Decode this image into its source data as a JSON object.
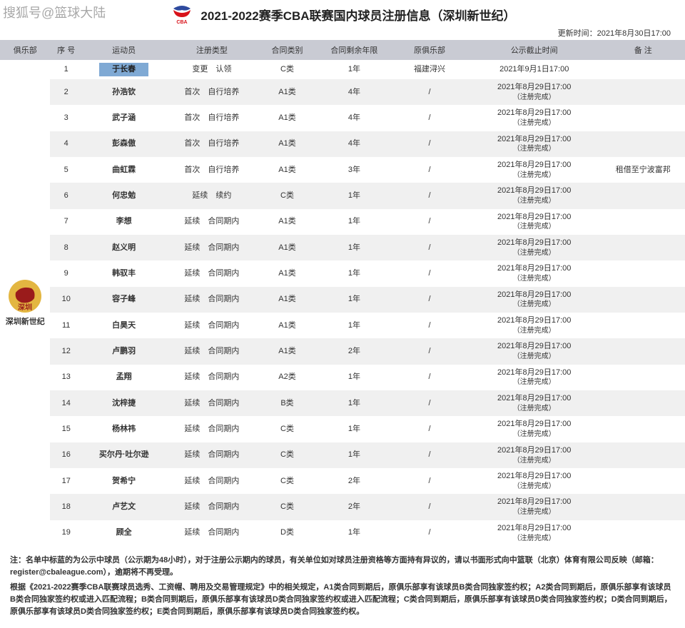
{
  "watermark": "搜狐号@篮球大陆",
  "header": {
    "title": "2021-2022赛季CBA联赛国内球员注册信息（深圳新世纪）",
    "logo_colors": {
      "top": "#2e4a9e",
      "bottom": "#d8121a",
      "text": "#d8121a"
    }
  },
  "update_label": "更新时间：",
  "update_value": "2021年8月30日17:00",
  "columns": [
    "俱乐部",
    "序 号",
    "运动员",
    "注册类型",
    "合同类别",
    "合同剩余年限",
    "原俱乐部",
    "公示截止时间",
    "备 注"
  ],
  "col_widths": [
    "60px",
    "38px",
    "100px",
    "110px",
    "70px",
    "90px",
    "90px",
    "160px",
    "100px"
  ],
  "club": {
    "name": "深圳新世纪",
    "logo_bg": "#e3b641",
    "logo_fg": "#9a1b1b"
  },
  "header_bg": "#c9cbd3",
  "row_even_bg": "#f0f0f0",
  "highlight_bg": "#7fa9d4",
  "rows": [
    {
      "no": "1",
      "name": "于长春",
      "hl": true,
      "reg": "变更　认领",
      "ctype": "C类",
      "years": "1年",
      "origin": "福建浔兴",
      "pub": "2021年9月1日17:00",
      "pub2": "",
      "note": ""
    },
    {
      "no": "2",
      "name": "孙浩钦",
      "reg": "首次　自行培养",
      "ctype": "A1类",
      "years": "4年",
      "origin": "/",
      "pub": "2021年8月29日17:00",
      "pub2": "（注册完成）",
      "note": ""
    },
    {
      "no": "3",
      "name": "武子涵",
      "reg": "首次　自行培养",
      "ctype": "A1类",
      "years": "4年",
      "origin": "/",
      "pub": "2021年8月29日17:00",
      "pub2": "（注册完成）",
      "note": ""
    },
    {
      "no": "4",
      "name": "彭森傲",
      "reg": "首次　自行培养",
      "ctype": "A1类",
      "years": "4年",
      "origin": "/",
      "pub": "2021年8月29日17:00",
      "pub2": "（注册完成）",
      "note": ""
    },
    {
      "no": "5",
      "name": "曲虹霖",
      "reg": "首次　自行培养",
      "ctype": "A1类",
      "years": "3年",
      "origin": "/",
      "pub": "2021年8月29日17:00",
      "pub2": "（注册完成）",
      "note": "租借至宁波富邦"
    },
    {
      "no": "6",
      "name": "何忠勉",
      "reg": "延续　续约",
      "ctype": "C类",
      "years": "1年",
      "origin": "/",
      "pub": "2021年8月29日17:00",
      "pub2": "（注册完成）",
      "note": ""
    },
    {
      "no": "7",
      "name": "李想",
      "reg": "延续　合同期内",
      "ctype": "A1类",
      "years": "1年",
      "origin": "/",
      "pub": "2021年8月29日17:00",
      "pub2": "（注册完成）",
      "note": ""
    },
    {
      "no": "8",
      "name": "赵义明",
      "reg": "延续　合同期内",
      "ctype": "A1类",
      "years": "1年",
      "origin": "/",
      "pub": "2021年8月29日17:00",
      "pub2": "（注册完成）",
      "note": ""
    },
    {
      "no": "9",
      "name": "韩驭丰",
      "reg": "延续　合同期内",
      "ctype": "A1类",
      "years": "1年",
      "origin": "/",
      "pub": "2021年8月29日17:00",
      "pub2": "（注册完成）",
      "note": ""
    },
    {
      "no": "10",
      "name": "容子峰",
      "reg": "延续　合同期内",
      "ctype": "A1类",
      "years": "1年",
      "origin": "/",
      "pub": "2021年8月29日17:00",
      "pub2": "（注册完成）",
      "note": ""
    },
    {
      "no": "11",
      "name": "白昊天",
      "reg": "延续　合同期内",
      "ctype": "A1类",
      "years": "1年",
      "origin": "/",
      "pub": "2021年8月29日17:00",
      "pub2": "（注册完成）",
      "note": ""
    },
    {
      "no": "12",
      "name": "卢鹏羽",
      "reg": "延续　合同期内",
      "ctype": "A1类",
      "years": "2年",
      "origin": "/",
      "pub": "2021年8月29日17:00",
      "pub2": "（注册完成）",
      "note": ""
    },
    {
      "no": "13",
      "name": "孟翔",
      "reg": "延续　合同期内",
      "ctype": "A2类",
      "years": "1年",
      "origin": "/",
      "pub": "2021年8月29日17:00",
      "pub2": "（注册完成）",
      "note": ""
    },
    {
      "no": "14",
      "name": "沈梓捷",
      "reg": "延续　合同期内",
      "ctype": "B类",
      "years": "1年",
      "origin": "/",
      "pub": "2021年8月29日17:00",
      "pub2": "（注册完成）",
      "note": ""
    },
    {
      "no": "15",
      "name": "杨林祎",
      "reg": "延续　合同期内",
      "ctype": "C类",
      "years": "1年",
      "origin": "/",
      "pub": "2021年8月29日17:00",
      "pub2": "（注册完成）",
      "note": ""
    },
    {
      "no": "16",
      "name": "买尔丹·吐尔逊",
      "reg": "延续　合同期内",
      "ctype": "C类",
      "years": "1年",
      "origin": "/",
      "pub": "2021年8月29日17:00",
      "pub2": "（注册完成）",
      "note": ""
    },
    {
      "no": "17",
      "name": "贺希宁",
      "reg": "延续　合同期内",
      "ctype": "C类",
      "years": "2年",
      "origin": "/",
      "pub": "2021年8月29日17:00",
      "pub2": "（注册完成）",
      "note": ""
    },
    {
      "no": "18",
      "name": "卢艺文",
      "reg": "延续　合同期内",
      "ctype": "C类",
      "years": "2年",
      "origin": "/",
      "pub": "2021年8月29日17:00",
      "pub2": "（注册完成）",
      "note": ""
    },
    {
      "no": "19",
      "name": "顾全",
      "reg": "延续　合同期内",
      "ctype": "D类",
      "years": "1年",
      "origin": "/",
      "pub": "2021年8月29日17:00",
      "pub2": "（注册完成）",
      "note": ""
    }
  ],
  "footnotes": [
    "注：名单中标蓝的为公示中球员（公示期为48小时），对于注册公示期内的球员，有关单位如对球员注册资格等方面持有异议的，请以书面形式向中篮联（北京）体育有限公司反映（邮箱：register@cbaleague.com），逾期将不再受理。",
    "根据《2021-2022赛季CBA联赛球员选秀、工资帽、聘用及交易管理规定》中的相关规定，A1类合同到期后，原俱乐部享有该球员B类合同独家签约权；A2类合同到期后，原俱乐部享有该球员B类合同独家签约权或进入匹配流程；B类合同到期后，原俱乐部享有该球员D类合同独家签约权或进入匹配流程；C类合同到期后，原俱乐部享有该球员D类合同独家签约权；D类合同到期后，原俱乐部享有该球员D类合同独家签约权；E类合同到期后，原俱乐部享有该球员D类合同独家签约权。"
  ]
}
